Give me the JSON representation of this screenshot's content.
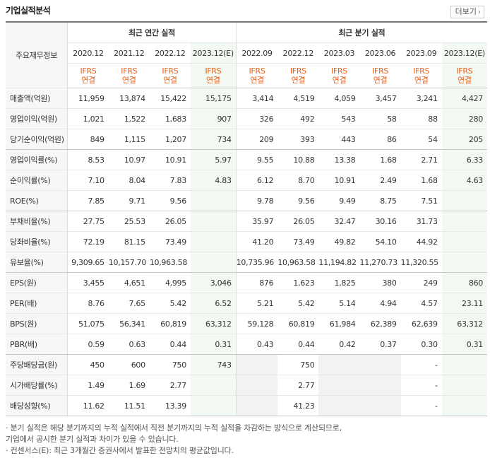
{
  "title": "기업실적분석",
  "more_label": "더보기",
  "header": {
    "label_col": "주요재무정보",
    "annual_group": "최근 연간 실적",
    "quarter_group": "최근 분기 실적",
    "periods": [
      "2020.12",
      "2021.12",
      "2022.12",
      "2023.12(E)",
      "2022.09",
      "2022.12",
      "2023.03",
      "2023.06",
      "2023.09",
      "2023.12(E)"
    ],
    "basis_line1": "IFRS",
    "basis_line2": "연결"
  },
  "rows": [
    {
      "label": "매출액(억원)",
      "values": [
        "11,959",
        "13,874",
        "15,422",
        "15,175",
        "3,414",
        "4,519",
        "4,059",
        "3,457",
        "3,241",
        "4,427"
      ]
    },
    {
      "label": "영업이익(억원)",
      "values": [
        "1,021",
        "1,522",
        "1,683",
        "907",
        "326",
        "492",
        "543",
        "58",
        "88",
        "280"
      ]
    },
    {
      "label": "당기순이익(억원)",
      "values": [
        "849",
        "1,115",
        "1,207",
        "734",
        "209",
        "393",
        "443",
        "86",
        "54",
        "205"
      ]
    },
    {
      "label": "영업이익률(%)",
      "values": [
        "8.53",
        "10.97",
        "10.91",
        "5.97",
        "9.55",
        "10.88",
        "13.38",
        "1.68",
        "2.71",
        "6.33"
      ]
    },
    {
      "label": "순이익률(%)",
      "values": [
        "7.10",
        "8.04",
        "7.83",
        "4.83",
        "6.12",
        "8.70",
        "10.91",
        "2.49",
        "1.68",
        "4.63"
      ]
    },
    {
      "label": "ROE(%)",
      "values": [
        "7.85",
        "9.71",
        "9.56",
        "",
        "9.78",
        "9.56",
        "9.49",
        "8.75",
        "7.51",
        ""
      ]
    },
    {
      "label": "부채비율(%)",
      "values": [
        "27.75",
        "25.53",
        "26.05",
        "",
        "35.97",
        "26.05",
        "32.47",
        "30.16",
        "31.73",
        ""
      ]
    },
    {
      "label": "당좌비율(%)",
      "values": [
        "72.19",
        "81.15",
        "73.49",
        "",
        "41.20",
        "73.49",
        "49.82",
        "54.10",
        "44.92",
        ""
      ]
    },
    {
      "label": "유보율(%)",
      "values": [
        "9,309.65",
        "10,157.70",
        "10,963.58",
        "",
        "10,735.96",
        "10,963.58",
        "11,194.82",
        "11,270.73",
        "11,320.55",
        ""
      ]
    },
    {
      "label": "EPS(원)",
      "values": [
        "3,455",
        "4,651",
        "4,995",
        "3,046",
        "876",
        "1,623",
        "1,825",
        "380",
        "249",
        "860"
      ]
    },
    {
      "label": "PER(배)",
      "values": [
        "8.76",
        "7.65",
        "5.42",
        "6.52",
        "5.21",
        "5.42",
        "5.14",
        "4.94",
        "4.57",
        "23.11"
      ]
    },
    {
      "label": "BPS(원)",
      "values": [
        "51,075",
        "56,341",
        "60,819",
        "63,312",
        "59,128",
        "60,819",
        "61,984",
        "62,389",
        "62,639",
        "63,312"
      ]
    },
    {
      "label": "PBR(배)",
      "values": [
        "0.59",
        "0.63",
        "0.44",
        "0.31",
        "0.43",
        "0.44",
        "0.42",
        "0.37",
        "0.30",
        "0.31"
      ]
    },
    {
      "label": "주당배당금(원)",
      "values": [
        "450",
        "600",
        "750",
        "743",
        "",
        "750",
        "",
        "",
        "-",
        ""
      ]
    },
    {
      "label": "시가배당률(%)",
      "values": [
        "1.49",
        "1.69",
        "2.77",
        "",
        "",
        "2.77",
        "",
        "",
        "-",
        ""
      ]
    },
    {
      "label": "배당성향(%)",
      "values": [
        "11.62",
        "11.51",
        "13.39",
        "",
        "",
        "41.23",
        "",
        "",
        "-",
        ""
      ]
    }
  ],
  "footnotes": [
    "· 분기 실적은 해당 분기까지의 누적 실적에서 직전 분기까지의 누적 실적을 차감하는 방식으로 계산되므로,",
    "  기업에서 공시한 분기 실적과 차이가 있을 수 있습니다.",
    "· 컨센서스(E): 최근 3개월간 증권사에서 발표한 전망치의 평균값입니다."
  ]
}
